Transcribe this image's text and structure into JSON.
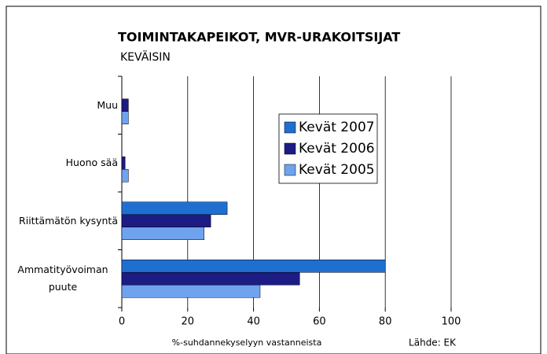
{
  "chart_data": {
    "type": "hbar",
    "title": "TOIMINTAKAPEIKOT, MVR-URAKOITSIJAT",
    "subtitle": "KEVÄISIN",
    "x_label": "%-suhdannekyselyyn vastanneista",
    "source": "Lähde: EK",
    "categories": [
      "Muu",
      "Huono sää",
      "Riittämätön kysyntä",
      "Ammatityövoiman puute"
    ],
    "series": [
      {
        "name": "Kevät 2007",
        "color": "#1f6fd0",
        "values": [
          0,
          0,
          32,
          80
        ]
      },
      {
        "name": "Kevät 2006",
        "color": "#1c1c84",
        "values": [
          2,
          1,
          27,
          54
        ]
      },
      {
        "name": "Kevät 2005",
        "color": "#6fa3ee",
        "values": [
          2,
          2,
          25,
          42
        ]
      }
    ],
    "xlim": [
      0,
      100
    ],
    "xticks": [
      0,
      20,
      40,
      60,
      80,
      100
    ],
    "grid": true
  }
}
